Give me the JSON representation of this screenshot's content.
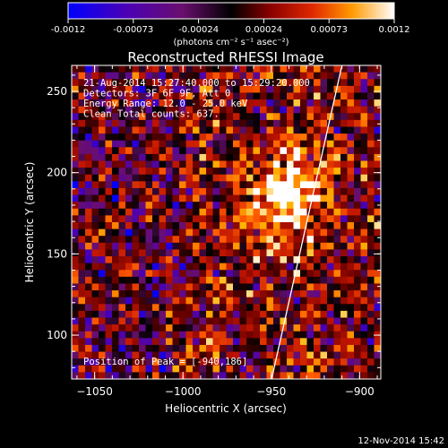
{
  "chart_data": {
    "type": "heatmap",
    "title": "Reconstructed RHESSI Image",
    "xlabel": "Heliocentric X (arcsec)",
    "ylabel": "Heliocentric Y (arcsec)",
    "xlim": [
      -1063,
      -888
    ],
    "ylim": [
      73,
      266
    ],
    "xticks": [
      -1050,
      -1000,
      -950,
      -900
    ],
    "yticks": [
      100,
      150,
      200,
      250
    ],
    "colorbar": {
      "ticks": [
        "-0.0012",
        "-0.00073",
        "-0.00024",
        "0.00024",
        "0.00073",
        "0.0012"
      ],
      "range": [
        -0.0012,
        0.0012
      ],
      "units": "(photons cm⁻² s⁻¹ asec⁻²)",
      "colormap": [
        "#0000ff",
        "#4b00b4",
        "#6a0f6e",
        "#000000",
        "#6a0000",
        "#c01400",
        "#ff5a00",
        "#ffb400",
        "#ffffff"
      ]
    },
    "annotations": [
      "21-Aug-2014 15:27:40.000 to 15:29:20.000",
      "Detectors: 3F 6F 9F, Att 0",
      "Energy Range: 12.0 - 25.0 keV",
      "Clean    Total counts: 637."
    ],
    "peak_label": "Position of Peak = [-940,186]",
    "peak": {
      "x": -940,
      "y": 186
    },
    "limb_line": [
      [
        -950,
        72
      ],
      [
        -910,
        266
      ]
    ],
    "footer": "12-Nov-2014 15:42",
    "grid": false
  }
}
